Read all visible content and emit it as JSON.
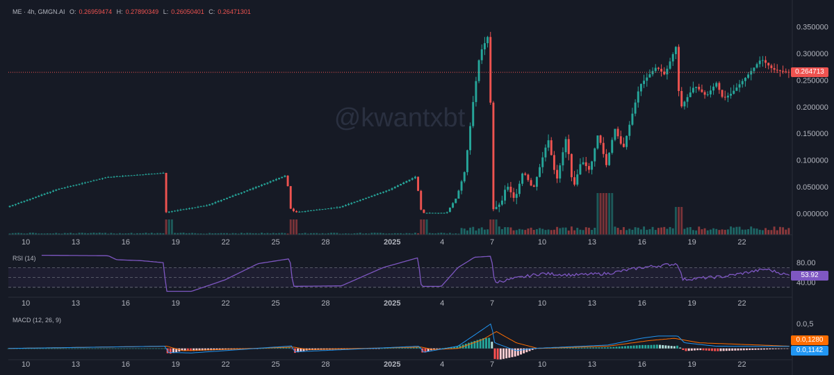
{
  "main_legend": {
    "symbol": "ME · 4h, GMGN.AI",
    "o_label": "O:",
    "o": "0.26959474",
    "h_label": "H:",
    "h": "0.27890349",
    "l_label": "L:",
    "l": "0.26050401",
    "c_label": "C:",
    "c": "0.26471301"
  },
  "watermark": "@kwantxbt",
  "rsi_legend": "RSI (14)",
  "macd_legend": "MACD (12, 26, 9)",
  "last_price_tag": "0.264713",
  "rsi_tag": "53.92",
  "macd_tag": "0.0,1280",
  "signal_tag": "0.0,1142",
  "colors": {
    "background": "#161a25",
    "up": "#26a69a",
    "down": "#ef5350",
    "rsi_line": "#7e57c2",
    "macd_line": "#2196f3",
    "signal_line": "#ff6d00",
    "last_price_line": "#ef5350"
  },
  "chart_data": [
    {
      "type": "candlestick",
      "title": "ME · 4h, GMGN.AI",
      "x_tick_labels": [
        "10",
        "13",
        "16",
        "19",
        "22",
        "25",
        "28",
        "2025",
        "4",
        "7",
        "10",
        "13",
        "16",
        "19",
        "22"
      ],
      "y_tick_labels": [
        "0.350000",
        "0.300000",
        "0.250000",
        "0.200000",
        "0.150000",
        "0.100000",
        "0.050000",
        "0.000000"
      ],
      "ylim": [
        -0.04,
        0.39
      ],
      "last_price": 0.264713,
      "anchors": [
        {
          "x": 9.0,
          "close": 0.012
        },
        {
          "x": 12.0,
          "close": 0.045
        },
        {
          "x": 15.0,
          "close": 0.068
        },
        {
          "x": 18.4,
          "close": 0.076
        },
        {
          "x": 18.5,
          "close": 0.002
        },
        {
          "x": 21.0,
          "close": 0.015
        },
        {
          "x": 24.0,
          "close": 0.05
        },
        {
          "x": 25.8,
          "close": 0.072
        },
        {
          "x": 26.0,
          "close": 0.01
        },
        {
          "x": 26.3,
          "close": 0.002
        },
        {
          "x": 29.0,
          "close": 0.012
        },
        {
          "x": 32.0,
          "close": 0.045
        },
        {
          "x": 33.6,
          "close": 0.07
        },
        {
          "x": 33.8,
          "close": 0.01
        },
        {
          "x": 34.0,
          "close": 0.001
        },
        {
          "x": 35.4,
          "close": 0.001
        },
        {
          "x": 36.0,
          "close": 0.03
        },
        {
          "x": 36.5,
          "close": 0.08
        },
        {
          "x": 37.0,
          "close": 0.21
        },
        {
          "x": 37.4,
          "close": 0.3
        },
        {
          "x": 38.0,
          "close": 0.34
        },
        {
          "x": 38.1,
          "close": 0.005
        },
        {
          "x": 38.7,
          "close": 0.02
        },
        {
          "x": 39.0,
          "close": 0.055
        },
        {
          "x": 39.5,
          "close": 0.025
        },
        {
          "x": 40.0,
          "close": 0.08
        },
        {
          "x": 40.6,
          "close": 0.045
        },
        {
          "x": 41.5,
          "close": 0.14
        },
        {
          "x": 42.0,
          "close": 0.06
        },
        {
          "x": 42.6,
          "close": 0.145
        },
        {
          "x": 43.0,
          "close": 0.045
        },
        {
          "x": 43.5,
          "close": 0.1
        },
        {
          "x": 44.0,
          "close": 0.08
        },
        {
          "x": 44.5,
          "close": 0.15
        },
        {
          "x": 45.0,
          "close": 0.09
        },
        {
          "x": 45.5,
          "close": 0.16
        },
        {
          "x": 46.0,
          "close": 0.12
        },
        {
          "x": 47.0,
          "close": 0.24
        },
        {
          "x": 48.0,
          "close": 0.275
        },
        {
          "x": 48.5,
          "close": 0.26
        },
        {
          "x": 49.2,
          "close": 0.315
        },
        {
          "x": 49.4,
          "close": 0.195
        },
        {
          "x": 50.3,
          "close": 0.24
        },
        {
          "x": 51.0,
          "close": 0.22
        },
        {
          "x": 51.6,
          "close": 0.245
        },
        {
          "x": 52.0,
          "close": 0.215
        },
        {
          "x": 52.5,
          "close": 0.225
        },
        {
          "x": 53.5,
          "close": 0.26
        },
        {
          "x": 54.3,
          "close": 0.29
        },
        {
          "x": 55.0,
          "close": 0.27
        },
        {
          "x": 55.9,
          "close": 0.2647
        }
      ],
      "volume_spikes_days": [
        18.5,
        26.0,
        33.8,
        38.1,
        44.5,
        45.0,
        49.2
      ]
    },
    {
      "type": "line",
      "title": "RSI (14)",
      "y_tick_labels": [
        "80.00",
        "40.00"
      ],
      "ylim": [
        10,
        100
      ],
      "bands": [
        70,
        50,
        30
      ],
      "last_value": 53.92,
      "anchors": [
        {
          "x": 11.0,
          "y": 95
        },
        {
          "x": 15.0,
          "y": 94
        },
        {
          "x": 15.5,
          "y": 86
        },
        {
          "x": 17.0,
          "y": 84
        },
        {
          "x": 18.3,
          "y": 80
        },
        {
          "x": 18.5,
          "y": 22
        },
        {
          "x": 20.0,
          "y": 22
        },
        {
          "x": 22.0,
          "y": 45
        },
        {
          "x": 24.0,
          "y": 78
        },
        {
          "x": 25.9,
          "y": 88
        },
        {
          "x": 26.1,
          "y": 32
        },
        {
          "x": 29.0,
          "y": 33
        },
        {
          "x": 31.5,
          "y": 70
        },
        {
          "x": 33.6,
          "y": 90
        },
        {
          "x": 33.8,
          "y": 32
        },
        {
          "x": 35.0,
          "y": 32
        },
        {
          "x": 36.0,
          "y": 70
        },
        {
          "x": 37.0,
          "y": 91
        },
        {
          "x": 38.0,
          "y": 93
        },
        {
          "x": 38.2,
          "y": 40
        },
        {
          "x": 41.0,
          "y": 58
        },
        {
          "x": 43.0,
          "y": 55
        },
        {
          "x": 45.0,
          "y": 58
        },
        {
          "x": 47.0,
          "y": 70
        },
        {
          "x": 49.2,
          "y": 78
        },
        {
          "x": 49.5,
          "y": 46
        },
        {
          "x": 52.0,
          "y": 52
        },
        {
          "x": 54.5,
          "y": 67
        },
        {
          "x": 55.9,
          "y": 53.92
        }
      ]
    },
    {
      "type": "line",
      "title": "MACD (12, 26, 9)",
      "y_tick_labels": [
        "0.0,5"
      ],
      "ylim": [
        -0.1,
        0.3
      ],
      "series": [
        {
          "name": "MACD",
          "values_at_anchor_x": [
            9.0,
            18.4,
            18.6,
            20.0,
            26.0,
            26.2,
            33.7,
            33.9,
            36.0,
            37.0,
            38.0,
            38.2,
            39.5,
            40.5,
            45.0,
            47.0,
            48.0,
            49.2,
            49.6,
            51.5,
            55.9
          ],
          "values": [
            0.0,
            0.02,
            -0.035,
            -0.04,
            0.022,
            -0.03,
            0.02,
            -0.035,
            0.02,
            0.12,
            0.22,
            0.05,
            -0.02,
            0.0,
            0.03,
            0.09,
            0.11,
            0.11,
            0.05,
            0.02,
            0.018
          ]
        },
        {
          "name": "Signal",
          "values_at_anchor_x": [
            9.0,
            18.5,
            19.5,
            26.1,
            27.0,
            33.8,
            34.5,
            36.0,
            37.5,
            38.3,
            39.5,
            40.8,
            45.0,
            47.5,
            49.0,
            50.5,
            55.9
          ],
          "values": [
            0.0,
            0.02,
            -0.02,
            0.012,
            -0.01,
            0.012,
            -0.01,
            0.0,
            0.08,
            0.15,
            0.05,
            0.0,
            0.02,
            0.07,
            0.09,
            0.05,
            0.02
          ]
        }
      ]
    }
  ]
}
